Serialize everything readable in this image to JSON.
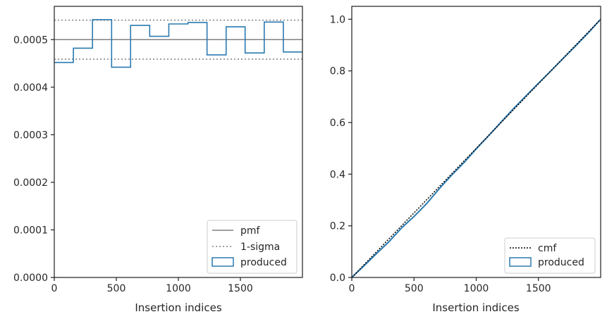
{
  "chart_data": [
    {
      "type": "step",
      "xlabel": "Insertion indices",
      "ylabel": "",
      "xlim": [
        0,
        2000
      ],
      "ylim": [
        0,
        0.00057
      ],
      "x_ticks": [
        0,
        500,
        1000,
        1500
      ],
      "x_tick_labels": [
        "0",
        "500",
        "1000",
        "1500"
      ],
      "y_ticks": [
        0,
        0.0001,
        0.0002,
        0.0003,
        0.0004,
        0.0005
      ],
      "y_tick_labels": [
        "0.0000",
        "0.0001",
        "0.0002",
        "0.0003",
        "0.0004",
        "0.0005"
      ],
      "grid": false,
      "legend_position": "lower right",
      "reference_lines": [
        {
          "name": "pmf",
          "value": 0.0005,
          "color": "#808080",
          "style": "solid"
        },
        {
          "name": "1-sigma",
          "value": 0.000541,
          "color": "#808080",
          "style": "dotted"
        },
        {
          "name": "1-sigma",
          "value": 0.000459,
          "color": "#808080",
          "style": "dotted"
        }
      ],
      "series": [
        {
          "name": "produced",
          "color": "#2a7ab0",
          "bin_edges": [
            0,
            154,
            308,
            462,
            615,
            769,
            923,
            1077,
            1231,
            1385,
            1538,
            1692,
            1846,
            2000
          ],
          "values": [
            0.000452,
            0.000482,
            0.000542,
            0.000442,
            0.00053,
            0.000507,
            0.000533,
            0.000536,
            0.000468,
            0.000527,
            0.000472,
            0.000537,
            0.000474
          ]
        }
      ],
      "legend": [
        {
          "label": "pmf",
          "style": "solid-gray"
        },
        {
          "label": "1-sigma",
          "style": "dotted-gray"
        },
        {
          "label": "produced",
          "style": "patch-blue"
        }
      ]
    },
    {
      "type": "line",
      "xlabel": "Insertion indices",
      "ylabel": "",
      "xlim": [
        0,
        2000
      ],
      "ylim": [
        0,
        1.05
      ],
      "x_ticks": [
        0,
        500,
        1000,
        1500
      ],
      "x_tick_labels": [
        "0",
        "500",
        "1000",
        "1500"
      ],
      "y_ticks": [
        0,
        0.2,
        0.4,
        0.6,
        0.8,
        1.0
      ],
      "y_tick_labels": [
        "0.0",
        "0.2",
        "0.4",
        "0.6",
        "0.8",
        "1.0"
      ],
      "grid": false,
      "legend_position": "lower right",
      "series": [
        {
          "name": "cmf",
          "color": "#000000",
          "style": "dotted",
          "x": [
            0,
            2000
          ],
          "y": [
            0,
            1.0
          ]
        },
        {
          "name": "produced",
          "color": "#2a7ab0",
          "style": "solid",
          "x": [
            0,
            100,
            200,
            300,
            400,
            500,
            600,
            700,
            800,
            900,
            1000,
            1100,
            1200,
            1300,
            1400,
            1500,
            1600,
            1700,
            1800,
            1900,
            2000
          ],
          "y": [
            0,
            0.046,
            0.093,
            0.139,
            0.192,
            0.236,
            0.285,
            0.342,
            0.395,
            0.444,
            0.498,
            0.549,
            0.602,
            0.654,
            0.703,
            0.752,
            0.8,
            0.849,
            0.897,
            0.947,
            1.0
          ]
        }
      ],
      "legend": [
        {
          "label": "cmf",
          "style": "dotted-black"
        },
        {
          "label": "produced",
          "style": "patch-blue"
        }
      ]
    }
  ]
}
